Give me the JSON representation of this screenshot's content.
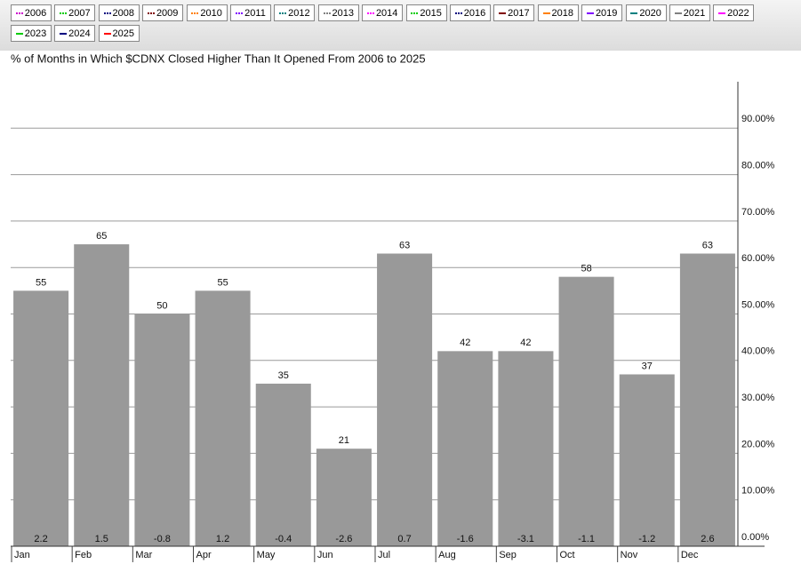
{
  "legend": [
    {
      "label": "2006",
      "color": "#cc00cc",
      "style": "dotted"
    },
    {
      "label": "2007",
      "color": "#00cc00",
      "style": "dotted"
    },
    {
      "label": "2008",
      "color": "#000080",
      "style": "dotted"
    },
    {
      "label": "2009",
      "color": "#800000",
      "style": "dotted"
    },
    {
      "label": "2010",
      "color": "#ff8000",
      "style": "dotted"
    },
    {
      "label": "2011",
      "color": "#8000ff",
      "style": "dotted"
    },
    {
      "label": "2012",
      "color": "#008080",
      "style": "dotted"
    },
    {
      "label": "2013",
      "color": "#808080",
      "style": "dotted"
    },
    {
      "label": "2014",
      "color": "#ff00ff",
      "style": "dotted"
    },
    {
      "label": "2015",
      "color": "#00cc00",
      "style": "dotted"
    },
    {
      "label": "2016",
      "color": "#000080",
      "style": "dotted"
    },
    {
      "label": "2017",
      "color": "#800000",
      "style": "solid"
    },
    {
      "label": "2018",
      "color": "#ff8000",
      "style": "solid"
    },
    {
      "label": "2019",
      "color": "#8000ff",
      "style": "solid"
    },
    {
      "label": "2020",
      "color": "#008080",
      "style": "solid"
    },
    {
      "label": "2021",
      "color": "#808080",
      "style": "solid"
    },
    {
      "label": "2022",
      "color": "#ff00ff",
      "style": "solid"
    },
    {
      "label": "2023",
      "color": "#00cc00",
      "style": "solid"
    },
    {
      "label": "2024",
      "color": "#000080",
      "style": "solid"
    },
    {
      "label": "2025",
      "color": "#ff0000",
      "style": "solid"
    }
  ],
  "chart_data": {
    "type": "bar",
    "title": "% of Months in Which $CDNX Closed Higher Than It Opened From 2006 to 2025",
    "categories": [
      "Jan",
      "Feb",
      "Mar",
      "Apr",
      "May",
      "Jun",
      "Jul",
      "Aug",
      "Sep",
      "Oct",
      "Nov",
      "Dec"
    ],
    "values": [
      55,
      65,
      50,
      55,
      35,
      21,
      63,
      42,
      42,
      58,
      37,
      63
    ],
    "avg_change": [
      2.2,
      1.5,
      -0.8,
      1.2,
      -0.4,
      -2.6,
      0.7,
      -1.6,
      -3.1,
      -1.1,
      -1.2,
      2.6
    ],
    "color": "#999999",
    "ylim": [
      0,
      100
    ],
    "yticks": [
      {
        "value": 0,
        "label": "0.00%"
      },
      {
        "value": 10,
        "label": "10.00%"
      },
      {
        "value": 20,
        "label": "20.00%"
      },
      {
        "value": 30,
        "label": "30.00%"
      },
      {
        "value": 40,
        "label": "40.00%"
      },
      {
        "value": 50,
        "label": "50.00%"
      },
      {
        "value": 60,
        "label": "60.00%"
      },
      {
        "value": 70,
        "label": "70.00%"
      },
      {
        "value": 80,
        "label": "80.00%"
      },
      {
        "value": 90,
        "label": "90.00%"
      }
    ],
    "grid": true
  }
}
